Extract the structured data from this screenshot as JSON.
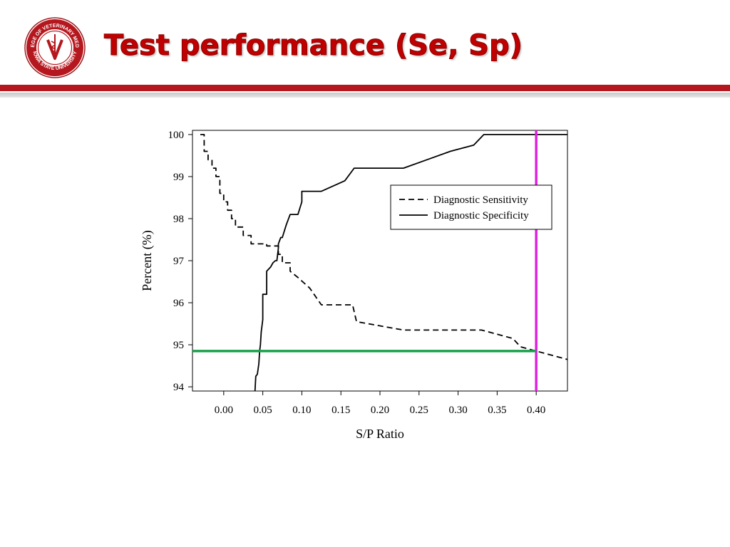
{
  "slide": {
    "title": "Test performance (Se, Sp)",
    "seal_text": "COLLEGE OF VETERINARY MEDICINE · IOWA STATE UNIVERSITY",
    "colors": {
      "title": "#c00000",
      "rule": "#b5171e"
    }
  },
  "chart_data": {
    "type": "line",
    "xlabel": "S/P Ratio",
    "ylabel": "Percent (%)",
    "xlim": [
      -0.04,
      0.44
    ],
    "ylim": [
      93.9,
      100.1
    ],
    "xticks": [
      0.0,
      0.05,
      0.1,
      0.15,
      0.2,
      0.25,
      0.3,
      0.35,
      0.4
    ],
    "xtick_labels": [
      "0.00",
      "0.05",
      "0.10",
      "0.15",
      "0.20",
      "0.25",
      "0.30",
      "0.35",
      "0.40"
    ],
    "yticks": [
      94,
      95,
      96,
      97,
      98,
      99,
      100
    ],
    "ytick_labels": [
      "94",
      "95",
      "96",
      "97",
      "98",
      "99",
      "100"
    ],
    "grid": false,
    "legend_position": "upper-right",
    "series": [
      {
        "name": "Diagnostic Sensitivity",
        "style": "dashed",
        "color": "#000000",
        "x": [
          -0.03,
          -0.025,
          -0.025,
          -0.02,
          -0.02,
          -0.015,
          -0.015,
          -0.01,
          -0.01,
          -0.005,
          -0.005,
          0.0,
          0.0,
          0.005,
          0.005,
          0.01,
          0.01,
          0.015,
          0.015,
          0.025,
          0.025,
          0.035,
          0.035,
          0.055,
          0.055,
          0.07,
          0.07,
          0.075,
          0.075,
          0.085,
          0.085,
          0.095,
          0.11,
          0.125,
          0.145,
          0.155,
          0.165,
          0.17,
          0.2,
          0.23,
          0.33,
          0.37,
          0.38,
          0.4,
          0.42,
          0.44
        ],
        "y": [
          100.0,
          100.0,
          99.6,
          99.6,
          99.4,
          99.4,
          99.2,
          99.2,
          99.0,
          99.0,
          98.6,
          98.6,
          98.4,
          98.4,
          98.2,
          98.2,
          98.0,
          98.0,
          97.8,
          97.8,
          97.6,
          97.6,
          97.4,
          97.4,
          97.35,
          97.35,
          97.15,
          97.15,
          96.95,
          96.95,
          96.75,
          96.6,
          96.35,
          95.95,
          95.95,
          95.95,
          95.95,
          95.55,
          95.45,
          95.35,
          95.35,
          95.15,
          94.95,
          94.85,
          94.75,
          94.65
        ]
      },
      {
        "name": "Diagnostic Specificity",
        "style": "solid",
        "color": "#000000",
        "x": [
          0.04,
          0.041,
          0.043,
          0.045,
          0.046,
          0.047,
          0.048,
          0.05,
          0.05,
          0.055,
          0.055,
          0.06,
          0.063,
          0.066,
          0.068,
          0.07,
          0.07,
          0.073,
          0.075,
          0.08,
          0.085,
          0.09,
          0.09,
          0.095,
          0.1,
          0.1,
          0.105,
          0.115,
          0.125,
          0.155,
          0.167,
          0.18,
          0.2,
          0.23,
          0.26,
          0.29,
          0.32,
          0.333,
          0.335,
          0.44
        ],
        "y": [
          93.9,
          94.25,
          94.3,
          94.55,
          94.85,
          95.0,
          95.3,
          95.6,
          96.2,
          96.2,
          96.75,
          96.85,
          96.95,
          97.0,
          97.0,
          97.3,
          97.4,
          97.55,
          97.55,
          97.85,
          98.1,
          98.1,
          98.1,
          98.1,
          98.4,
          98.65,
          98.65,
          98.65,
          98.65,
          98.9,
          99.2,
          99.2,
          99.2,
          99.2,
          99.4,
          99.6,
          99.75,
          100.0,
          100.0,
          100.0
        ]
      }
    ],
    "reference_lines": [
      {
        "orientation": "vertical",
        "x": 0.4,
        "color": "#e020e0"
      },
      {
        "orientation": "horizontal",
        "y": 94.85,
        "x_from": -0.04,
        "x_to": 0.4,
        "color": "#1aa04a"
      }
    ]
  }
}
